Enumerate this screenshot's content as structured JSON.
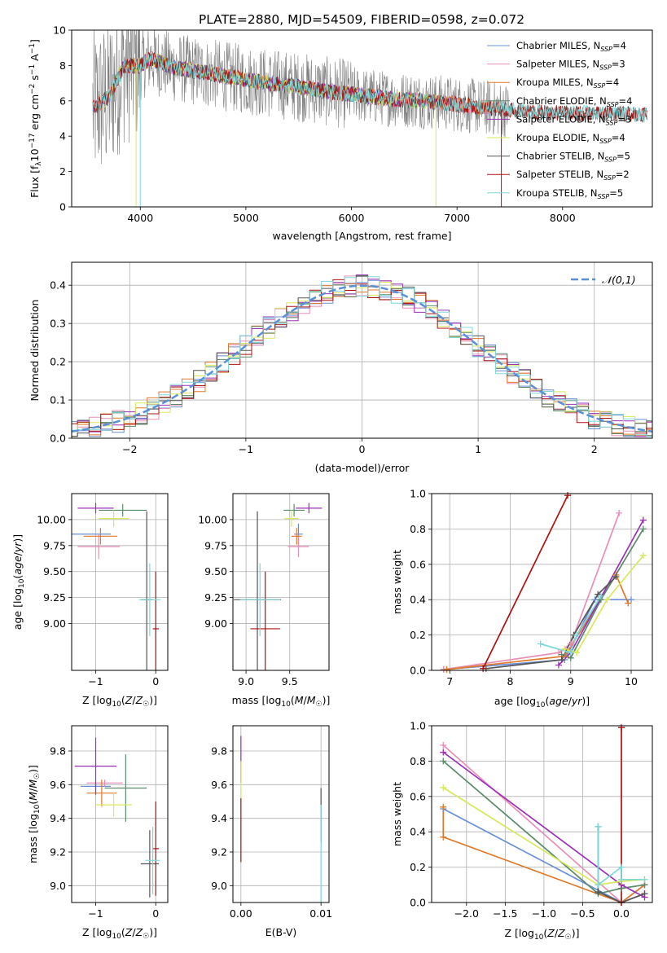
{
  "title": "PLATE=2880, MJD=54509, FIBERID=0598, z=0.072",
  "colors": {
    "chabrier_miles": "#6a8fd8",
    "salpeter_miles": "#e88fb8",
    "kroupa_miles": "#e07a2a",
    "chabrier_elodie": "#5a8a6a",
    "salpeter_elodie": "#9b30b8",
    "kroupa_elodie": "#d8e85a",
    "chabrier_stelib": "#555555",
    "salpeter_stelib": "#b01010",
    "kroupa_stelib": "#7fd8d8",
    "data": "#7f7f7f",
    "normal": "#5b8fd6",
    "grid": "#b0b0b0"
  },
  "chart_data": [
    {
      "id": "spectrum",
      "type": "line",
      "title": "PLATE=2880, MJD=54509, FIBERID=0598, z=0.072",
      "xlabel": "wavelength [Angstrom, rest frame]",
      "ylabel": "Flux [f_λ 10^-17 erg cm^-2 s^-1 A^-1]",
      "xlim": [
        3350,
        8850
      ],
      "ylim": [
        0,
        10
      ],
      "xticks": [
        "4000",
        "5000",
        "6000",
        "7000",
        "8000"
      ],
      "yticks": [
        "0",
        "2",
        "4",
        "6",
        "8",
        "10"
      ],
      "legend": {
        "placement": "top-right",
        "entries": [
          {
            "name": "Chabrier MILES, N",
            "sub": "SSP",
            "val": "=4",
            "color": "chabrier_miles"
          },
          {
            "name": "Salpeter MILES, N",
            "sub": "SSP",
            "val": "=3",
            "color": "salpeter_miles"
          },
          {
            "name": "Kroupa MILES, N",
            "sub": "SSP",
            "val": "=4",
            "color": "kroupa_miles"
          },
          {
            "name": "Chabrier ELODIE, N",
            "sub": "SSP",
            "val": "=4",
            "color": "chabrier_elodie"
          },
          {
            "name": "Salpeter ELODIE, N",
            "sub": "SSP",
            "val": "=3",
            "color": "salpeter_elodie"
          },
          {
            "name": "Kroupa ELODIE, N",
            "sub": "SSP",
            "val": "=4",
            "color": "kroupa_elodie"
          },
          {
            "name": "Chabrier STELIB, N",
            "sub": "SSP",
            "val": "=5",
            "color": "chabrier_stelib"
          },
          {
            "name": "Salpeter STELIB, N",
            "sub": "SSP",
            "val": "=2",
            "color": "salpeter_stelib"
          },
          {
            "name": "Kroupa STELIB, N",
            "sub": "SSP",
            "val": "=5",
            "color": "kroupa_stelib"
          }
        ]
      },
      "continuum": {
        "x": [
          3550,
          3700,
          3850,
          4000,
          4100,
          4300,
          4500,
          4800,
          5000,
          5200,
          5500,
          5800,
          6100,
          6400,
          6700,
          7000,
          7300,
          7600,
          8000,
          8400,
          8800
        ],
        "y": [
          5.6,
          6.2,
          8.0,
          8.0,
          8.4,
          7.9,
          7.7,
          7.4,
          7.2,
          7.0,
          6.8,
          6.5,
          6.3,
          6.1,
          6.0,
          5.8,
          5.6,
          5.4,
          5.3,
          5.3,
          5.2
        ]
      }
    },
    {
      "id": "residuals",
      "type": "step",
      "xlabel": "(data-model)/error",
      "ylabel": "Normed distribution",
      "xlim": [
        -2.5,
        2.5
      ],
      "ylim": [
        0,
        0.46
      ],
      "xticks": [
        "−2",
        "−1",
        "0",
        "1",
        "2"
      ],
      "yticks": [
        "0.0",
        "0.1",
        "0.2",
        "0.3",
        "0.4"
      ],
      "legend": {
        "placement": "top-right",
        "label": "𝒩(0,1)"
      },
      "bin_width": 0.1
    },
    {
      "id": "age_vs_Z",
      "type": "errorbar",
      "xlabel": "Z [log10(Z/Z☉)]",
      "ylabel": "age [log10(age/yr)]",
      "xlim": [
        -1.4,
        0.2
      ],
      "ylim": [
        8.55,
        10.25
      ],
      "xticks": [
        "−1",
        "0"
      ],
      "yticks": [
        "9.00",
        "9.25",
        "9.50",
        "9.75",
        "10.00"
      ],
      "points": [
        {
          "s": "chabrier_miles",
          "x": -1.25,
          "y": 9.86,
          "xe": 0.5,
          "ye": 0.0
        },
        {
          "s": "salpeter_miles",
          "x": -0.95,
          "y": 9.74,
          "xe": 0.35,
          "ye": 0.12
        },
        {
          "s": "kroupa_miles",
          "x": -0.92,
          "y": 9.84,
          "xe": 0.28,
          "ye": 0.08
        },
        {
          "s": "chabrier_elodie",
          "x": -0.55,
          "y": 10.09,
          "xe": 0.4,
          "ye": 0.06
        },
        {
          "s": "salpeter_elodie",
          "x": -1.0,
          "y": 10.11,
          "xe": 0.3,
          "ye": 0.05
        },
        {
          "s": "kroupa_elodie",
          "x": -0.7,
          "y": 10.01,
          "xe": 0.25,
          "ye": 0.08
        },
        {
          "s": "chabrier_stelib",
          "x": -0.15,
          "y": 9.23,
          "xe": 0.1,
          "ye": 0.85
        },
        {
          "s": "salpeter_stelib",
          "x": 0.0,
          "y": 8.95,
          "xe": 0.05,
          "ye": 0.55
        },
        {
          "s": "kroupa_stelib",
          "x": -0.1,
          "y": 9.23,
          "xe": 0.18,
          "ye": 0.35
        }
      ]
    },
    {
      "id": "age_vs_mass",
      "type": "errorbar",
      "xlabel": "mass [log10(M/M☉)]",
      "ylabel": "",
      "xlim": [
        8.85,
        9.95
      ],
      "ylim": [
        8.55,
        10.25
      ],
      "xticks": [
        "9.0",
        "9.5"
      ],
      "yticks": [
        "9.00",
        "9.25",
        "9.50",
        "9.75",
        "10.00"
      ],
      "points": [
        {
          "s": "chabrier_miles",
          "x": 9.6,
          "y": 9.86,
          "xe": 0.05,
          "ye": 0.1
        },
        {
          "s": "salpeter_miles",
          "x": 9.6,
          "y": 9.74,
          "xe": 0.12,
          "ye": 0.1
        },
        {
          "s": "kroupa_miles",
          "x": 9.58,
          "y": 9.84,
          "xe": 0.06,
          "ye": 0.08
        },
        {
          "s": "chabrier_elodie",
          "x": 9.55,
          "y": 10.09,
          "xe": 0.12,
          "ye": 0.06
        },
        {
          "s": "salpeter_elodie",
          "x": 9.72,
          "y": 10.11,
          "xe": 0.15,
          "ye": 0.05
        },
        {
          "s": "kroupa_elodie",
          "x": 9.52,
          "y": 10.01,
          "xe": 0.08,
          "ye": 0.08
        },
        {
          "s": "chabrier_stelib",
          "x": 9.13,
          "y": 9.23,
          "xe": 0.27,
          "ye": 0.85
        },
        {
          "s": "salpeter_stelib",
          "x": 9.22,
          "y": 8.95,
          "xe": 0.17,
          "ye": 0.55
        },
        {
          "s": "kroupa_stelib",
          "x": 9.16,
          "y": 9.23,
          "xe": 0.23,
          "ye": 0.35
        }
      ]
    },
    {
      "id": "weight_vs_age",
      "type": "line",
      "xlabel": "age  [log10(age/yr)]",
      "ylabel": "mass weight",
      "xlim": [
        6.7,
        10.35
      ],
      "ylim": [
        0,
        1.0
      ],
      "xticks": [
        "7",
        "8",
        "9",
        "10"
      ],
      "yticks": [
        "0.0",
        "0.2",
        "0.4",
        "0.6",
        "0.8",
        "1.0"
      ],
      "series": [
        {
          "s": "chabrier_miles",
          "x": [
            6.9,
            8.9,
            9.4,
            10.0
          ],
          "y": [
            0.005,
            0.06,
            0.4,
            0.4
          ]
        },
        {
          "s": "salpeter_miles",
          "x": [
            6.9,
            8.8,
            9.0,
            9.8
          ],
          "y": [
            0.005,
            0.1,
            0.15,
            0.89
          ]
        },
        {
          "s": "kroupa_miles",
          "x": [
            6.95,
            8.9,
            9.75,
            9.95
          ],
          "y": [
            0.005,
            0.08,
            0.54,
            0.38
          ]
        },
        {
          "s": "chabrier_elodie",
          "x": [
            8.85,
            9.0,
            9.5,
            10.2
          ],
          "y": [
            0.09,
            0.07,
            0.4,
            0.8
          ]
        },
        {
          "s": "salpeter_elodie",
          "x": [
            8.8,
            9.0,
            10.2
          ],
          "y": [
            0.03,
            0.1,
            0.85
          ]
        },
        {
          "s": "kroupa_elodie",
          "x": [
            8.9,
            9.1,
            9.6,
            10.2
          ],
          "y": [
            0.12,
            0.1,
            0.4,
            0.65
          ]
        },
        {
          "s": "chabrier_stelib",
          "x": [
            7.6,
            8.85,
            9.05,
            9.45,
            9.75
          ],
          "y": [
            0.01,
            0.06,
            0.2,
            0.43,
            0.53
          ]
        },
        {
          "s": "salpeter_stelib",
          "x": [
            7.55,
            8.95
          ],
          "y": [
            0.01,
            0.99
          ]
        },
        {
          "s": "kroupa_stelib",
          "x": [
            8.5,
            9.0,
            9.1,
            9.5
          ],
          "y": [
            0.15,
            0.1,
            0.2,
            0.42
          ]
        }
      ]
    },
    {
      "id": "mass_vs_Z",
      "type": "errorbar",
      "xlabel": "Z [log10(Z/Z☉)]",
      "ylabel": "mass [log10(M/M☉)]",
      "xlim": [
        -1.4,
        0.2
      ],
      "ylim": [
        8.9,
        9.95
      ],
      "xticks": [
        "−1",
        "0"
      ],
      "yticks": [
        "9.0",
        "9.2",
        "9.4",
        "9.6",
        "9.8"
      ],
      "points": [
        {
          "s": "chabrier_miles",
          "x": -1.0,
          "y": 9.59,
          "xe": 0.25,
          "ye": 0.02
        },
        {
          "s": "salpeter_miles",
          "x": -0.85,
          "y": 9.61,
          "xe": 0.3,
          "ye": 0.02
        },
        {
          "s": "kroupa_miles",
          "x": -0.9,
          "y": 9.55,
          "xe": 0.25,
          "ye": 0.08
        },
        {
          "s": "chabrier_elodie",
          "x": -0.5,
          "y": 9.58,
          "xe": 0.35,
          "ye": 0.2
        },
        {
          "s": "salpeter_elodie",
          "x": -1.0,
          "y": 9.71,
          "xe": 0.35,
          "ye": 0.17
        },
        {
          "s": "kroupa_elodie",
          "x": -0.7,
          "y": 9.48,
          "xe": 0.3,
          "ye": 0.07
        },
        {
          "s": "chabrier_stelib",
          "x": -0.1,
          "y": 9.13,
          "xe": 0.15,
          "ye": 0.2
        },
        {
          "s": "salpeter_stelib",
          "x": 0.0,
          "y": 9.22,
          "xe": 0.05,
          "ye": 0.28
        },
        {
          "s": "kroupa_stelib",
          "x": -0.05,
          "y": 9.15,
          "xe": 0.12,
          "ye": 0.2
        }
      ]
    },
    {
      "id": "mass_vs_ebv",
      "type": "errorbar",
      "xlabel": "E(B-V)",
      "ylabel": "",
      "xlim": [
        -0.001,
        0.011
      ],
      "ylim": [
        8.9,
        9.95
      ],
      "xticks": [
        "0.00",
        "0.01"
      ],
      "yticks": [
        "9.0",
        "9.2",
        "9.4",
        "9.6",
        "9.8"
      ],
      "points": [
        {
          "s": "salpeter_elodie",
          "x": 0.0,
          "y": 9.75,
          "xe": 0,
          "ye": 0.14
        },
        {
          "s": "kroupa_elodie",
          "x": 0.0,
          "y": 9.62,
          "xe": 0,
          "ye": 0.12
        },
        {
          "s": "salpeter_stelib",
          "x": 0.0,
          "y": 9.33,
          "xe": 0,
          "ye": 0.19
        },
        {
          "s": "chabrier_stelib",
          "x": 0.01,
          "y": 9.42,
          "xe": 0,
          "ye": 0.16
        },
        {
          "s": "kroupa_stelib",
          "x": 0.01,
          "y": 9.15,
          "xe": 0,
          "ye": 0.33
        }
      ]
    },
    {
      "id": "weight_vs_Z",
      "type": "line",
      "xlabel": "Z [log10(Z/Z☉)]",
      "ylabel": "mass weight",
      "xlim": [
        -2.45,
        0.4
      ],
      "ylim": [
        0,
        1.0
      ],
      "xticks": [
        "−2.0",
        "−1.5",
        "−1.0",
        "−0.5",
        "0.0"
      ],
      "yticks": [
        "0.0",
        "0.2",
        "0.4",
        "0.6",
        "0.8",
        "1.0"
      ],
      "series": [
        {
          "s": "chabrier_miles",
          "x": [
            -2.3,
            0.0,
            0.3
          ],
          "y": [
            0.53,
            0.0,
            0.1
          ]
        },
        {
          "s": "salpeter_miles",
          "x": [
            -2.3,
            0.0,
            0.3
          ],
          "y": [
            0.89,
            0.0,
            0.05
          ]
        },
        {
          "s": "kroupa_miles",
          "x": [
            -2.3,
            -2.3,
            0.0,
            0.3
          ],
          "y": [
            0.54,
            0.37,
            0.0,
            0.1
          ]
        },
        {
          "s": "chabrier_elodie",
          "x": [
            -2.3,
            -0.3,
            0.0,
            0.3
          ],
          "y": [
            0.8,
            0.05,
            0.08,
            0.1
          ]
        },
        {
          "s": "salpeter_elodie",
          "x": [
            -2.3,
            0.0,
            0.3
          ],
          "y": [
            0.85,
            0.1,
            0.03
          ]
        },
        {
          "s": "kroupa_elodie",
          "x": [
            -2.3,
            -0.3,
            0.0,
            0.3
          ],
          "y": [
            0.65,
            0.1,
            0.12,
            0.13
          ]
        },
        {
          "s": "chabrier_stelib",
          "x": [
            -0.3,
            -0.3,
            0.0,
            0.3
          ],
          "y": [
            0.43,
            0.06,
            0.0,
            0.05
          ]
        },
        {
          "s": "salpeter_stelib",
          "x": [
            0.0,
            0.0
          ],
          "y": [
            0.0,
            0.99
          ]
        },
        {
          "s": "kroupa_stelib",
          "x": [
            -0.3,
            -0.3,
            0.0,
            0.0,
            0.3
          ],
          "y": [
            0.43,
            0.1,
            0.2,
            0.13,
            0.13
          ]
        }
      ]
    }
  ]
}
